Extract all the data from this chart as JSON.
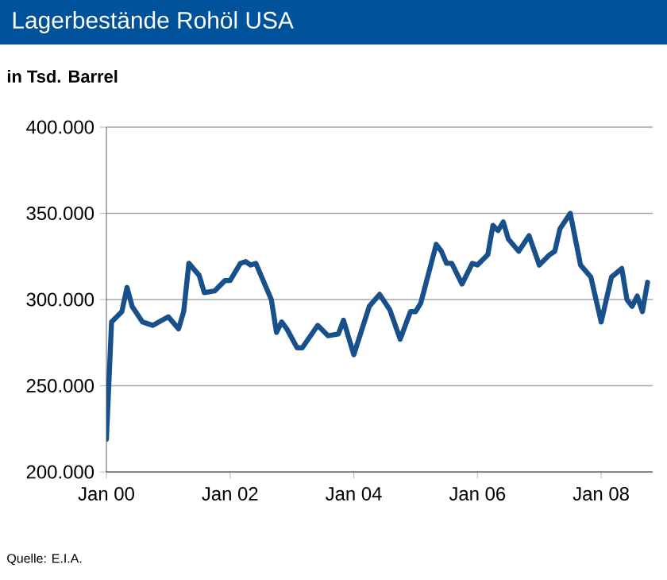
{
  "chart_data": {
    "type": "line",
    "title": "Lagerbestände Rohöl USA",
    "ylabel": "in Tsd. Barrel",
    "annotations": [
      "Quelle: E.I.A."
    ],
    "x": [
      "2000-01",
      "2000-02",
      "2000-04",
      "2000-05",
      "2000-06",
      "2000-08",
      "2000-09",
      "2000-10",
      "2001-01",
      "2001-03",
      "2001-04",
      "2001-05",
      "2001-07",
      "2001-08",
      "2001-10",
      "2001-12",
      "2002-01",
      "2002-03",
      "2002-04",
      "2002-05",
      "2002-06",
      "2002-09",
      "2002-10",
      "2002-11",
      "2002-12",
      "2003-02",
      "2003-03",
      "2003-06",
      "2003-08",
      "2003-10",
      "2003-11",
      "2004-01",
      "2004-04",
      "2004-06",
      "2004-08",
      "2004-10",
      "2004-12",
      "2005-01",
      "2005-02",
      "2005-05",
      "2005-06",
      "2005-07",
      "2005-08",
      "2005-10",
      "2005-12",
      "2006-01",
      "2006-03",
      "2006-04",
      "2006-05",
      "2006-06",
      "2006-07",
      "2006-09",
      "2006-11",
      "2007-01",
      "2007-03",
      "2007-04",
      "2007-05",
      "2007-07",
      "2007-09",
      "2007-11",
      "2008-01",
      "2008-03",
      "2008-05",
      "2008-06",
      "2008-07",
      "2008-08",
      "2008-09",
      "2008-10"
    ],
    "values": [
      219000,
      287000,
      293000,
      307000,
      296000,
      287000,
      286000,
      285000,
      290000,
      283000,
      293000,
      321000,
      314000,
      304000,
      305000,
      311000,
      311000,
      321000,
      322000,
      320000,
      321000,
      300000,
      281000,
      287000,
      283000,
      272000,
      272000,
      285000,
      279000,
      280000,
      288000,
      268000,
      296000,
      303000,
      294000,
      277000,
      293000,
      293000,
      298000,
      332000,
      328000,
      321000,
      321000,
      309000,
      321000,
      320000,
      326000,
      343000,
      340000,
      345000,
      335000,
      328000,
      337000,
      320000,
      326000,
      328000,
      341000,
      350000,
      320000,
      313000,
      287000,
      313000,
      318000,
      300000,
      296000,
      302000,
      293000,
      310000
    ],
    "color": "#17508a",
    "xlim": [
      "2000-01",
      "2008-11"
    ],
    "xticks": [
      {
        "value": "2000-01",
        "label": "Jan 00"
      },
      {
        "value": "2002-01",
        "label": "Jan 02"
      },
      {
        "value": "2004-01",
        "label": "Jan 04"
      },
      {
        "value": "2006-01",
        "label": "Jan 06"
      },
      {
        "value": "2008-01",
        "label": "Jan 08"
      }
    ],
    "ylim": [
      200000,
      400000
    ],
    "yticks": [
      {
        "value": 200000,
        "label": "200.000"
      },
      {
        "value": 250000,
        "label": "250.000"
      },
      {
        "value": 300000,
        "label": "300.000"
      },
      {
        "value": 350000,
        "label": "350.000"
      },
      {
        "value": 400000,
        "label": "400.000"
      }
    ],
    "grid": "y"
  }
}
